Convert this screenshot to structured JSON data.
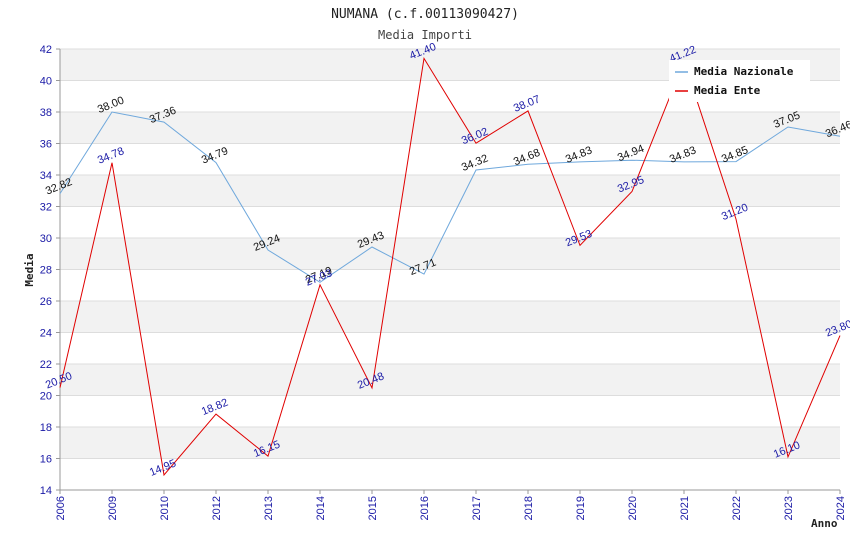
{
  "chart_data": {
    "type": "line",
    "title": "NUMANA (c.f.00113090427)",
    "subtitle": "Media Importi",
    "xlabel": "Anno",
    "ylabel": "Media",
    "ylim": [
      14,
      42
    ],
    "yticks": [
      14,
      16,
      18,
      20,
      22,
      24,
      26,
      28,
      30,
      32,
      34,
      36,
      38,
      40,
      42
    ],
    "categories": [
      "2006",
      "2009",
      "2010",
      "2012",
      "2013",
      "2014",
      "2015",
      "2016",
      "2017",
      "2018",
      "2019",
      "2020",
      "2021",
      "2022",
      "2023",
      "2024"
    ],
    "series": [
      {
        "name": "Media Nazionale",
        "color": "#6fa8dc",
        "values": [
          32.82,
          38.0,
          37.36,
          34.79,
          29.24,
          27.19,
          29.43,
          27.71,
          34.32,
          34.68,
          34.83,
          34.94,
          34.83,
          34.85,
          37.05,
          36.46
        ],
        "labels": [
          "32.82",
          "38.00",
          "37.36",
          "34.79",
          "29.24",
          "27.19",
          "29.43",
          "27.71",
          "34.32",
          "34.68",
          "34.83",
          "34.94",
          "34.83",
          "34.85",
          "37.05",
          "36.46"
        ]
      },
      {
        "name": "Media Ente",
        "color": "#e00000",
        "values": [
          20.5,
          34.78,
          14.95,
          18.82,
          16.15,
          27.03,
          20.48,
          41.4,
          36.02,
          38.07,
          29.53,
          32.95,
          41.22,
          31.2,
          16.1,
          23.8
        ],
        "labels": [
          "20.50",
          "34.78",
          "14.95",
          "18.82",
          "16.15",
          "27.03",
          "20.48",
          "41.40",
          "36.02",
          "38.07",
          "29.53",
          "32.95",
          "41.22",
          "31.20",
          "16.10",
          "23.80"
        ]
      }
    ],
    "legend": "top-right",
    "grid": true
  }
}
